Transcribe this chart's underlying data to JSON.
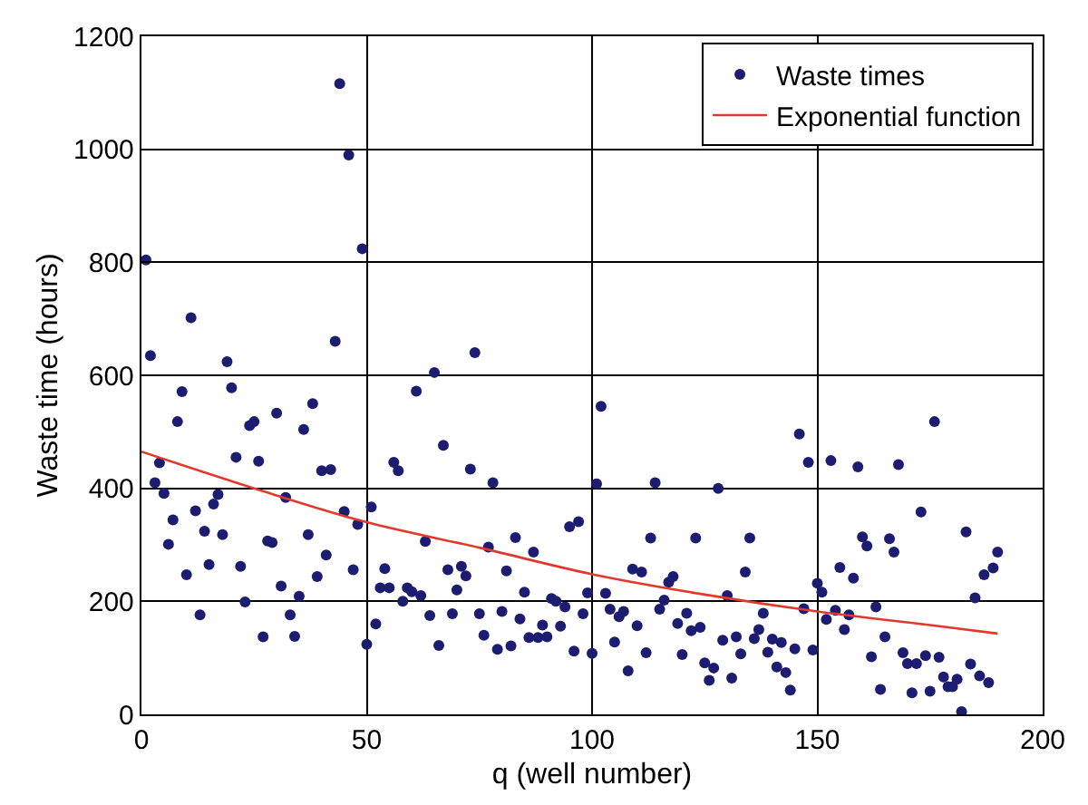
{
  "chart_data": {
    "type": "scatter",
    "xlabel": "q (well number)",
    "ylabel": "Waste time (hours)",
    "xlim": [
      0,
      200
    ],
    "xticks": [
      0,
      50,
      100,
      150,
      200
    ],
    "ylim": [
      0,
      1200
    ],
    "yticks": [
      0,
      200,
      400,
      600,
      800,
      1000,
      1200
    ],
    "grid": true,
    "legend": "top right",
    "series": [
      {
        "name": "Waste times",
        "marker": "circle",
        "color": "#1c1c70",
        "x": [
          1,
          2,
          3,
          4,
          5,
          6,
          7,
          8,
          9,
          10,
          11,
          12,
          13,
          14,
          15,
          16,
          17,
          18,
          19,
          20,
          21,
          22,
          23,
          24,
          25,
          26,
          27,
          28,
          29,
          30,
          31,
          32,
          33,
          34,
          35,
          36,
          37,
          38,
          39,
          40,
          41,
          42,
          43,
          44,
          45,
          46,
          47,
          48,
          49,
          50,
          51,
          52,
          53,
          54,
          55,
          56,
          57,
          58,
          59,
          60,
          61,
          62,
          63,
          64,
          65,
          66,
          67,
          68,
          69,
          70,
          71,
          72,
          73,
          74,
          75,
          76,
          77,
          78,
          79,
          80,
          81,
          82,
          83,
          84,
          85,
          86,
          87,
          88,
          89,
          90,
          91,
          92,
          93,
          94,
          95,
          96,
          97,
          98,
          99,
          100,
          101,
          102,
          103,
          104,
          105,
          106,
          107,
          108,
          109,
          110,
          111,
          112,
          113,
          114,
          115,
          116,
          117,
          118,
          119,
          120,
          121,
          122,
          123,
          124,
          125,
          126,
          127,
          128,
          129,
          130,
          131,
          132,
          133,
          134,
          135,
          136,
          137,
          138,
          139,
          140,
          141,
          142,
          143,
          144,
          145,
          146,
          147,
          148,
          149,
          150,
          151,
          152,
          153,
          154,
          155,
          156,
          157,
          158,
          159,
          160,
          161,
          162,
          163,
          164,
          165,
          166,
          167,
          168,
          169,
          170,
          171,
          172,
          173,
          174,
          175,
          176,
          177,
          178,
          179,
          180,
          181,
          182,
          183,
          184,
          185,
          186,
          187,
          188,
          189,
          190
        ],
        "values": [
          804,
          635,
          410,
          445,
          391,
          301,
          344,
          518,
          571,
          247,
          702,
          360,
          176,
          324,
          265,
          372,
          389,
          318,
          624,
          578,
          455,
          262,
          199,
          511,
          518,
          448,
          137,
          307,
          304,
          533,
          227,
          384,
          176,
          138,
          209,
          504,
          318,
          550,
          244,
          431,
          282,
          433,
          660,
          1116,
          359,
          990,
          256,
          336,
          824,
          124,
          367,
          160,
          224,
          258,
          224,
          446,
          431,
          200,
          224,
          217,
          572,
          210,
          306,
          175,
          605,
          122,
          476,
          256,
          178,
          220,
          262,
          245,
          434,
          640,
          178,
          140,
          296,
          410,
          115,
          182,
          254,
          121,
          313,
          169,
          216,
          136,
          287,
          136,
          158,
          137,
          205,
          200,
          156,
          190,
          332,
          112,
          341,
          178,
          215,
          108,
          408,
          545,
          214,
          186,
          128,
          173,
          182,
          77,
          257,
          157,
          252,
          109,
          312,
          410,
          186,
          202,
          234,
          244,
          161,
          106,
          179,
          148,
          312,
          154,
          91,
          60,
          82,
          400,
          131,
          210,
          64,
          137,
          107,
          252,
          312,
          134,
          150,
          179,
          110,
          133,
          84,
          127,
          74,
          43,
          116,
          496,
          187,
          446,
          114,
          232,
          216,
          168,
          449,
          184,
          260,
          150,
          176,
          241,
          438,
          314,
          298,
          102,
          190,
          44,
          137,
          311,
          287,
          442,
          109,
          90,
          38,
          90,
          358,
          104,
          41,
          518,
          101,
          66,
          49,
          49,
          62,
          5,
          323,
          89,
          206,
          68,
          247,
          56,
          259,
          287
        ]
      },
      {
        "name": "Exponential function",
        "type": "line",
        "line_style": "solid",
        "color": "#e03a2e",
        "x": [
          0,
          25,
          50,
          75,
          100,
          125,
          150,
          175,
          190
        ],
        "values": [
          465,
          400,
          340,
          295,
          248,
          212,
          182,
          158,
          143
        ]
      }
    ]
  }
}
